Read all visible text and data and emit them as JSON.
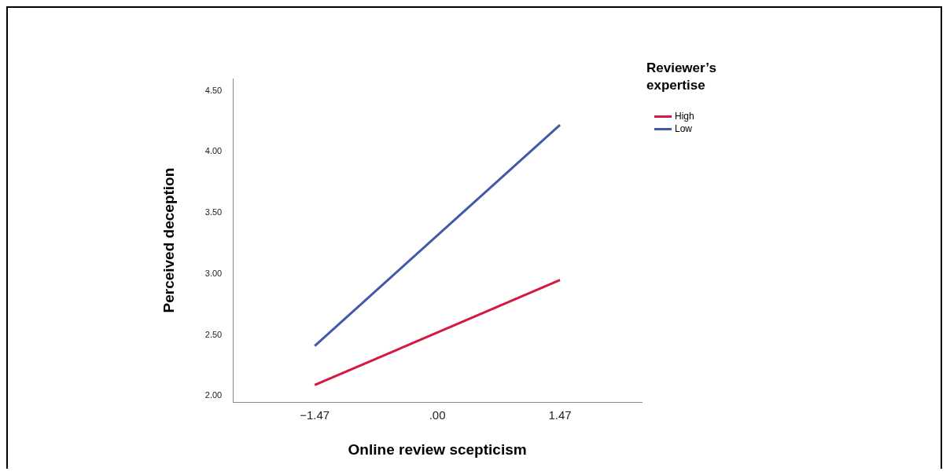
{
  "chart_data": {
    "type": "line",
    "xlabel": "Online review scepticism",
    "ylabel": "Perceived deception",
    "legend_title": "Reviewer’s expertise",
    "legend": "top right",
    "grid": false,
    "marker": "none",
    "line_style": "solid",
    "xlim": [
      -2.45,
      2.45
    ],
    "xticks": [
      {
        "value": -1.47,
        "label": "−1.47"
      },
      {
        "value": 0,
        "label": ".00"
      },
      {
        "value": 1.47,
        "label": "1.47"
      }
    ],
    "ylim": [
      1.95,
      4.6
    ],
    "yticks": [
      {
        "value": 2,
        "label": "2.00"
      },
      {
        "value": 2.5,
        "label": "2.50"
      },
      {
        "value": 3,
        "label": "3.00"
      },
      {
        "value": 3.5,
        "label": "3.50"
      },
      {
        "value": 4,
        "label": "4.00"
      },
      {
        "value": 4.5,
        "label": "4.50"
      }
    ],
    "x": [
      -1.47,
      1.47
    ],
    "series": [
      {
        "name": "High",
        "color": "#d6173f",
        "values": [
          2.09,
          2.95
        ]
      },
      {
        "name": "Low",
        "color": "#4458a8",
        "values": [
          2.41,
          4.22
        ]
      }
    ]
  }
}
